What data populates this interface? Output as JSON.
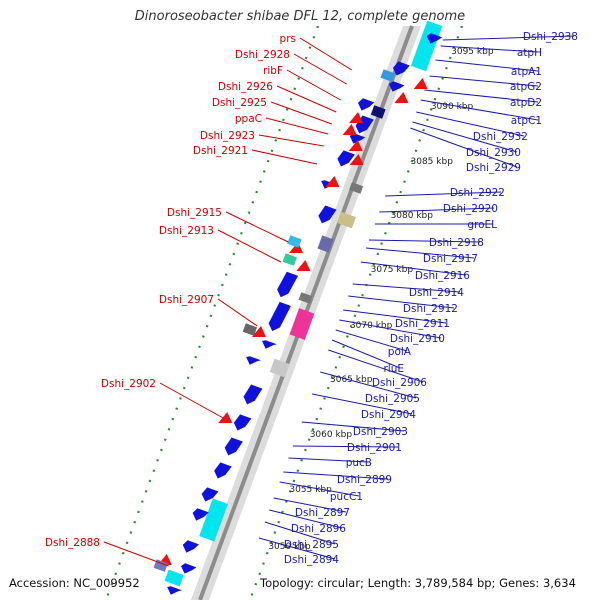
{
  "title": "Dinoroseobacter shibae DFL 12, complete genome",
  "footer": {
    "accession": "Accession: NC_009952",
    "topology": "Topology: circular; Length: 3,789,584 bp; Genes: 3,634"
  },
  "ruler": [
    "3095 kbp",
    "3090 kbp",
    "3085 kbp",
    "3080 kbp",
    "3075 kbp",
    "3070 kbp",
    "3065 kbp",
    "3060 kbp",
    "3055 kbp",
    "3050 kbp"
  ],
  "left_labels": [
    "prs",
    "Dshi_2928",
    "ribF",
    "Dshi_2926",
    "Dshi_2925",
    "ppaC",
    "Dshi_2923",
    "Dshi_2921",
    "Dshi_2915",
    "Dshi_2913",
    "Dshi_2907",
    "Dshi_2902",
    "Dshi_2888"
  ],
  "right_labels": [
    "Dshi_2938",
    "atpH",
    "atpA1",
    "atpG2",
    "atpD2",
    "atpC1",
    "Dshi_2932",
    "Dshi_2930",
    "Dshi_2929",
    "Dshi_2922",
    "Dshi_2920",
    "groEL",
    "Dshi_2918",
    "Dshi_2917",
    "Dshi_2916",
    "Dshi_2914",
    "Dshi_2912",
    "Dshi_2911",
    "Dshi_2910",
    "polA",
    "rluE",
    "Dshi_2906",
    "Dshi_2905",
    "Dshi_2904",
    "Dshi_2903",
    "Dshi_2901",
    "pucB",
    "Dshi_2899",
    "pucC1",
    "Dshi_2897",
    "Dshi_2896",
    "Dshi_2895",
    "Dshi_2894"
  ],
  "colors": {
    "left_label": "#cc0000",
    "right_label": "#1a1aaa",
    "backbone": "#8c8c8c",
    "forward_gene": "#ee1111",
    "reverse_gene": "#1111dd",
    "dot_ring": "#2e8b2e",
    "cyan_block": "#00e5ee"
  }
}
